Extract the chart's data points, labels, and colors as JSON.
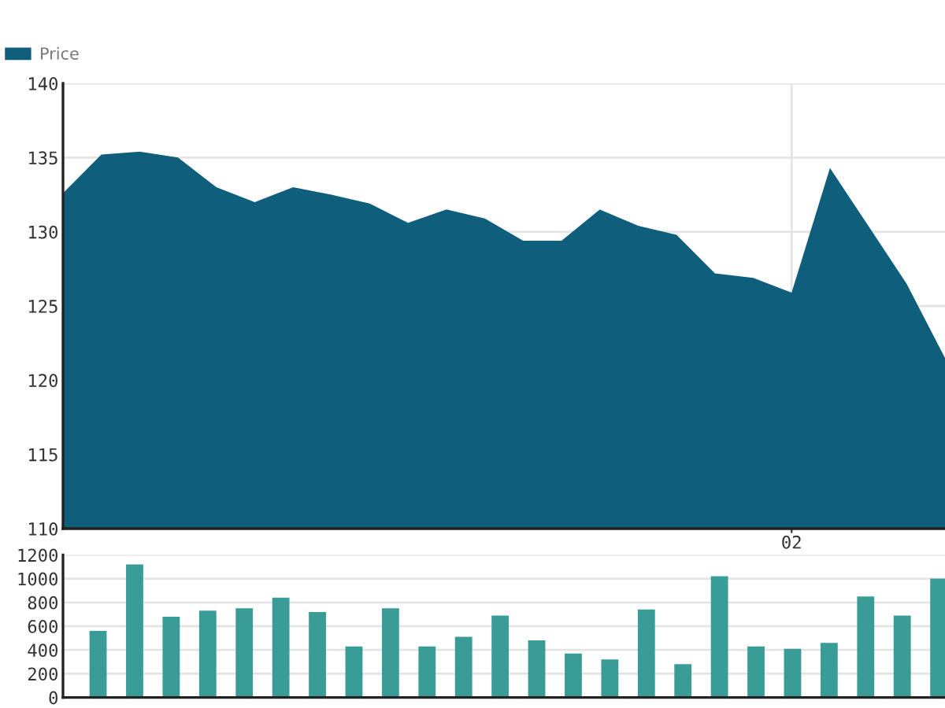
{
  "chart_data": [
    {
      "type": "area",
      "categories": [
        null,
        null,
        null,
        null,
        null,
        null,
        null,
        null,
        null,
        null,
        null,
        null,
        null,
        null,
        null,
        null,
        null,
        null,
        null,
        "02",
        null,
        null,
        null,
        null
      ],
      "series": [
        {
          "name": "Price",
          "color": "#0f5e7b",
          "values": [
            132.6,
            135.2,
            135.4,
            135.0,
            133.0,
            132.0,
            133.0,
            132.5,
            131.9,
            130.6,
            131.5,
            130.9,
            129.4,
            129.4,
            131.5,
            130.4,
            129.8,
            127.2,
            126.9,
            125.9,
            134.3,
            130.4,
            126.5,
            121.5
          ]
        }
      ],
      "ylim": [
        110,
        140
      ],
      "yticks": [
        110,
        115,
        120,
        125,
        130,
        135,
        140
      ],
      "grid": true,
      "legend": "top left"
    },
    {
      "type": "bar",
      "categories": [
        null,
        null,
        null,
        null,
        null,
        null,
        null,
        null,
        null,
        null,
        null,
        null,
        null,
        null,
        null,
        null,
        null,
        null,
        null,
        null,
        null,
        null,
        null,
        null
      ],
      "values": [
        560,
        1120,
        680,
        730,
        750,
        840,
        720,
        430,
        750,
        430,
        510,
        690,
        480,
        370,
        320,
        740,
        280,
        1020,
        430,
        410,
        460,
        850,
        690,
        1000
      ],
      "color": "#3a9c96",
      "ylim": [
        0,
        1200
      ],
      "yticks": [
        0,
        200,
        400,
        600,
        800,
        1000,
        1200
      ],
      "grid": "y"
    }
  ]
}
